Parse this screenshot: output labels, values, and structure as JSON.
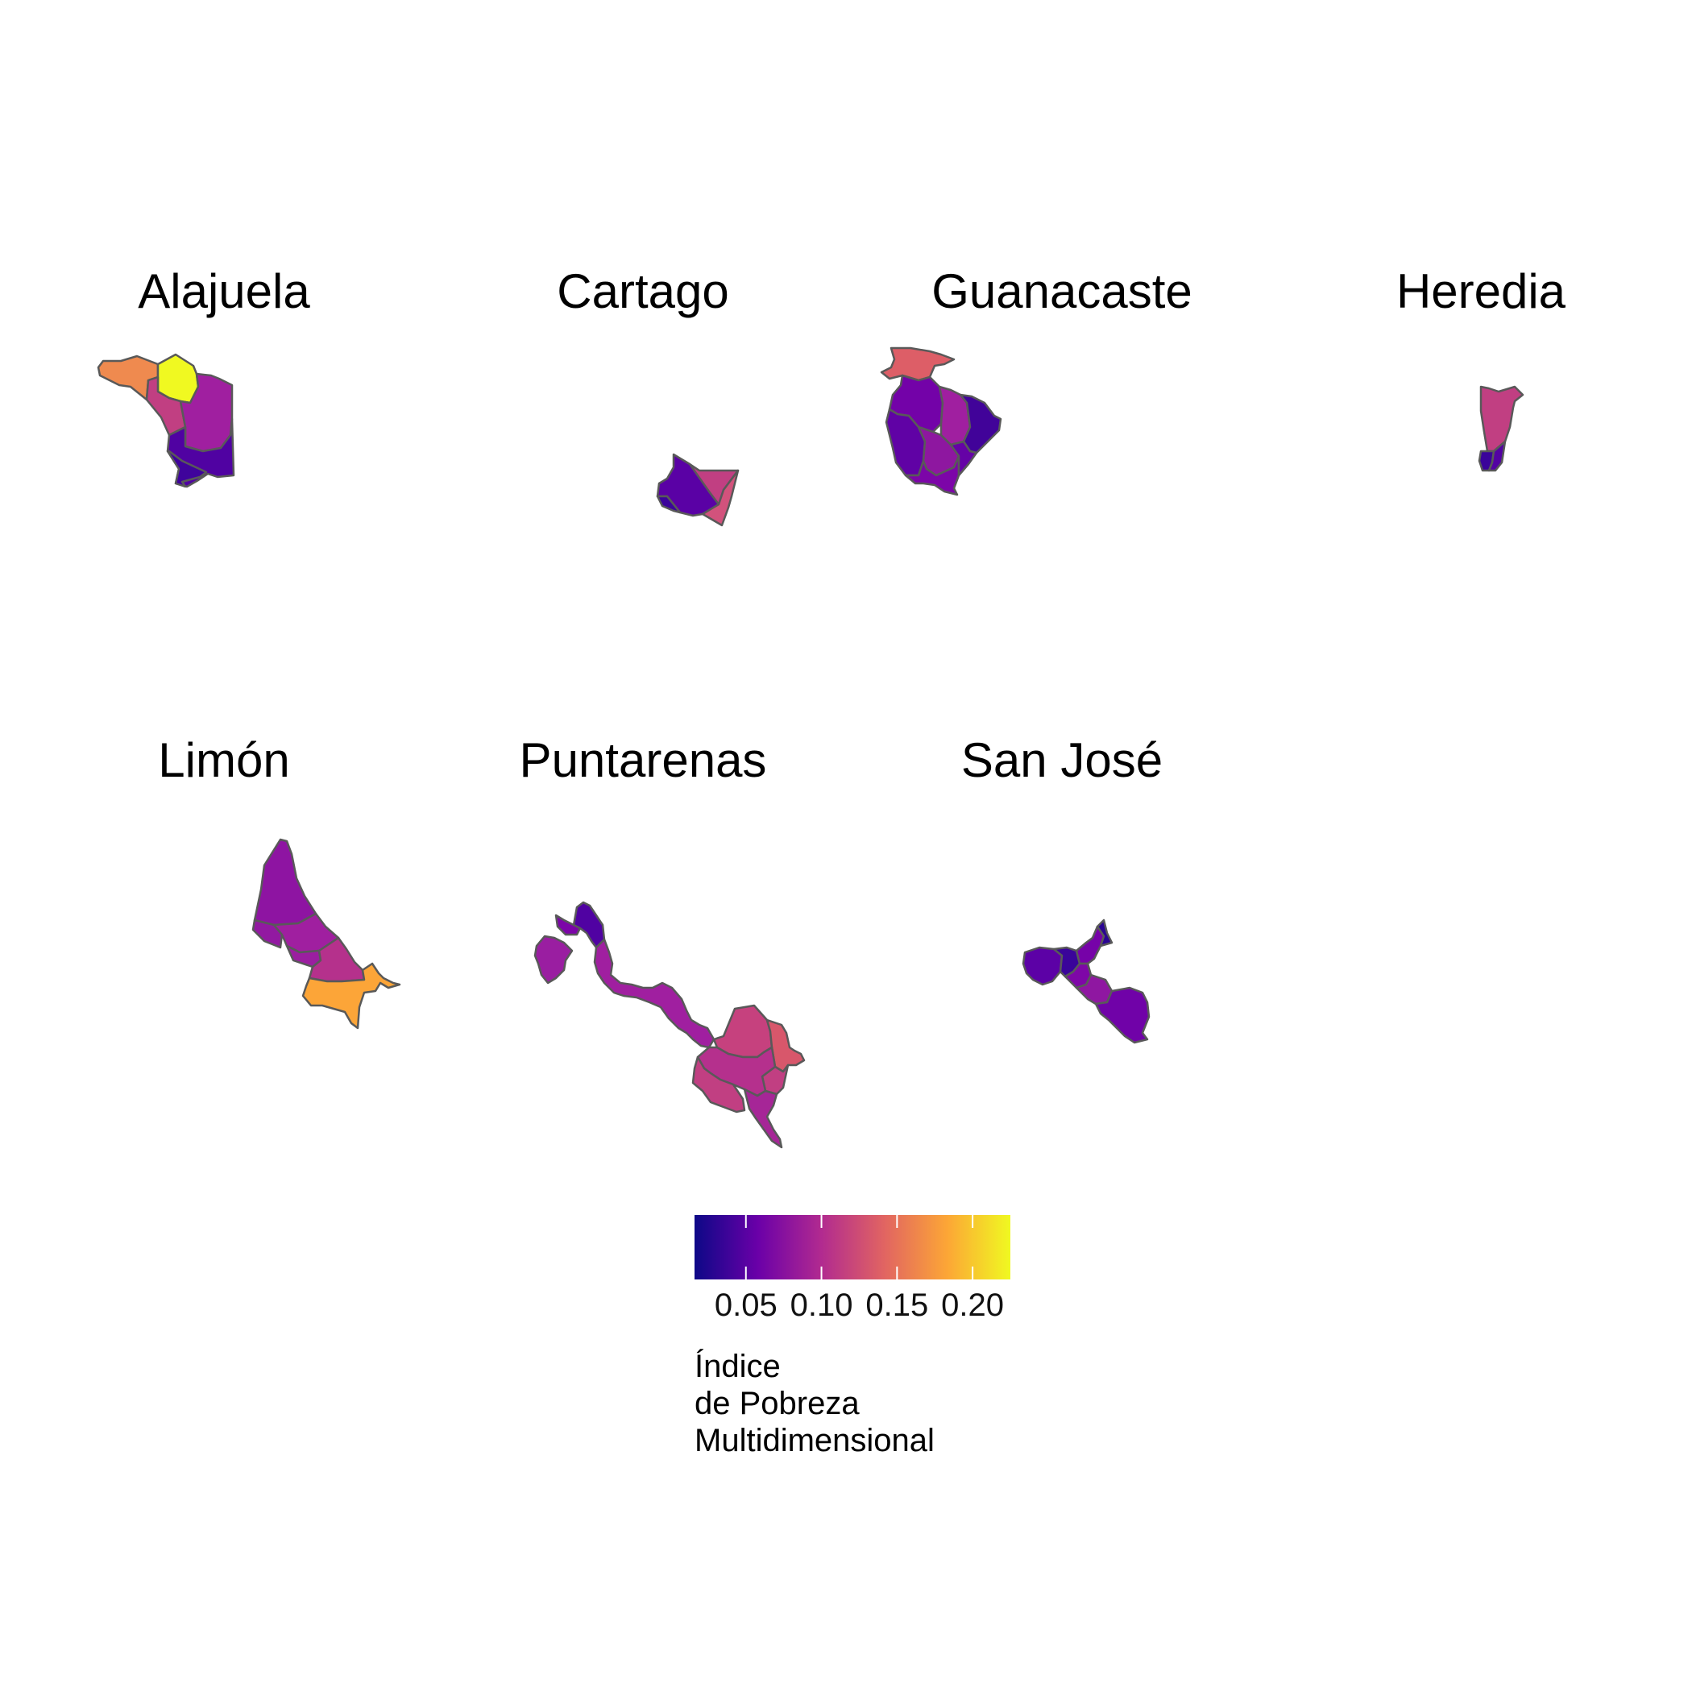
{
  "map": {
    "panels": [
      {
        "name": "Alajuela"
      },
      {
        "name": "Cartago"
      },
      {
        "name": "Guanacaste"
      },
      {
        "name": "Heredia"
      },
      {
        "name": "Limón"
      },
      {
        "name": "Puntarenas"
      },
      {
        "name": "San José"
      }
    ],
    "legend": {
      "title_lines": [
        "Índice",
        "de Pobreza",
        "Multidimensional"
      ],
      "ticks": [
        "0.05",
        "0.10",
        "0.15",
        "0.20"
      ],
      "tick_values": [
        0.05,
        0.1,
        0.15,
        0.2
      ],
      "range": [
        0.016,
        0.225
      ],
      "palette": [
        "#0d0887",
        "#6a00a8",
        "#b12a90",
        "#e16462",
        "#fca636",
        "#f0f921"
      ]
    },
    "colors": {
      "border": "#595959",
      "background": "#ffffff"
    }
  }
}
